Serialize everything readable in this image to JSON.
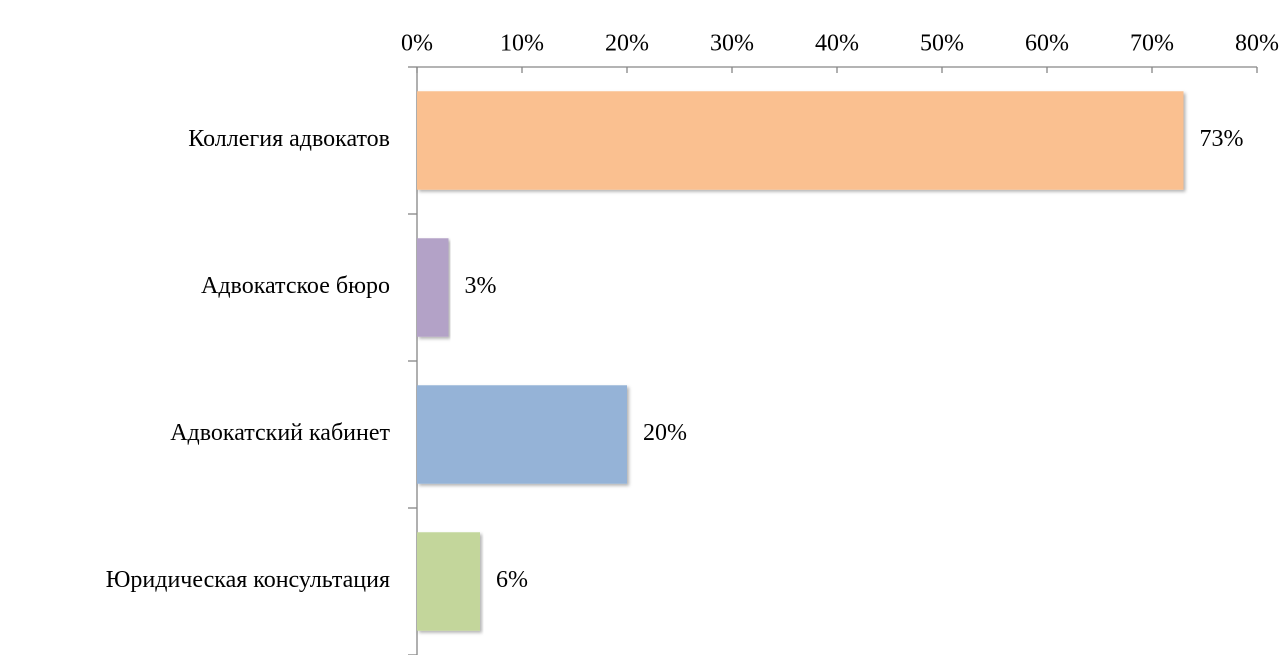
{
  "chart_data": {
    "type": "barh",
    "categories": [
      "Коллегия адвокатов",
      "Адвокатское бюро",
      "Адвокатский кабинет",
      "Юридическая консультация"
    ],
    "values": [
      73,
      3,
      20,
      6
    ],
    "value_labels": [
      "73%",
      "3%",
      "20%",
      "6%"
    ],
    "colors": [
      "#FAC090",
      "#B3A2C7",
      "#95B3D7",
      "#C3D69B"
    ],
    "xlim": [
      0,
      80
    ],
    "xticks": [
      {
        "value": 0,
        "label": "0%"
      },
      {
        "value": 10,
        "label": "10%"
      },
      {
        "value": 20,
        "label": "20%"
      },
      {
        "value": 30,
        "label": "30%"
      },
      {
        "value": 40,
        "label": "40%"
      },
      {
        "value": 50,
        "label": "50%"
      },
      {
        "value": 60,
        "label": "60%"
      },
      {
        "value": 70,
        "label": "70%"
      },
      {
        "value": 80,
        "label": "80%"
      }
    ],
    "grid": false
  }
}
